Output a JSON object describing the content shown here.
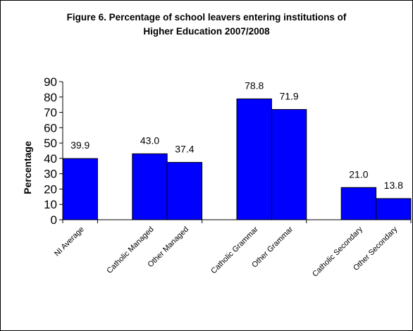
{
  "chart_data": {
    "type": "bar",
    "title_line1": "Figure 6. Percentage of school leavers entering institutions of",
    "title_line2": "Higher Education 2007/2008",
    "xlabel": "",
    "ylabel": "Percentage",
    "ylim": [
      0,
      90
    ],
    "yticks": [
      "0",
      "10",
      "20",
      "30",
      "40",
      "50",
      "60",
      "70",
      "80",
      "90"
    ],
    "grid": false,
    "legend": "none",
    "bar_color": "#0000FF",
    "categories": [
      "NI Average",
      "Catholic Managed",
      "Other Managed",
      "Catholic Grammar",
      "Other Grammar",
      "Catholic Secondary",
      "Other Secondary"
    ],
    "values": [
      39.9,
      43.0,
      37.4,
      78.8,
      71.9,
      21.0,
      13.8
    ],
    "value_labels": [
      "39.9",
      "43.0",
      "37.4",
      "78.8",
      "71.9",
      "21.0",
      "13.8"
    ]
  }
}
